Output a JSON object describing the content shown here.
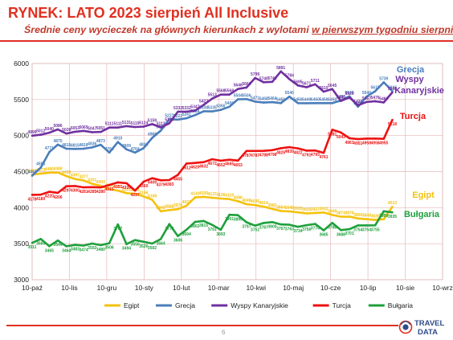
{
  "page": {
    "title": "RYNEK: LATO 2023 sierpień All Inclusive",
    "subtitle_plain": "Średnie ceny wycieczek na głównych kierunkach z wylotami ",
    "subtitle_underlined": "w pierwszym tygodniu sierpnia",
    "page_number": "6",
    "logo_text_top": "TRAVEL",
    "logo_text_bottom": "DATA"
  },
  "colors": {
    "accent": "#e03021",
    "grid": "#e6b8b8",
    "Egipt": "#f4c20d",
    "Grecja": "#4a7ebb",
    "Wyspy Kanaryjskie": "#7030a0",
    "Turcja": "#ee1111",
    "Bułgaria": "#1ea03c"
  },
  "chart_data": {
    "type": "line",
    "x_ticks": [
      "10-paź",
      "10-lis",
      "10-gru",
      "10-sty",
      "10-lut",
      "10-mar",
      "10-kwi",
      "10-maj",
      "10-cze",
      "10-lip",
      "10-sie",
      "10-wrz"
    ],
    "x_range": [
      "2022-10-10",
      "2023-09-10"
    ],
    "ylim": [
      3000,
      6000
    ],
    "yticks": [
      3000,
      3500,
      4000,
      4500,
      5000,
      5500,
      6000
    ],
    "grid": true,
    "legend_position": "bottom",
    "series": [
      {
        "name": "Egipt",
        "label_position": "right",
        "dates": [
          "2022-10-10",
          "2022-10-17",
          "2022-10-24",
          "2022-10-31",
          "2022-11-07",
          "2022-11-14",
          "2022-11-21",
          "2022-11-28",
          "2022-12-05",
          "2022-12-12",
          "2022-12-19",
          "2022-12-26",
          "2023-01-02",
          "2023-01-09",
          "2023-01-16",
          "2023-01-23",
          "2023-01-30",
          "2023-02-06",
          "2023-02-13",
          "2023-02-20",
          "2023-02-27",
          "2023-03-06",
          "2023-03-13",
          "2023-03-20",
          "2023-03-27",
          "2023-04-03",
          "2023-04-10",
          "2023-04-17",
          "2023-04-24",
          "2023-05-01",
          "2023-05-08",
          "2023-05-15",
          "2023-05-22",
          "2023-05-29",
          "2023-06-05",
          "2023-06-12",
          "2023-06-19",
          "2023-06-26",
          "2023-07-03",
          "2023-07-10",
          "2023-07-17",
          "2023-07-24",
          "2023-07-31"
        ],
        "values": [
          4457,
          4473,
          4486,
          4488,
          4438,
          4397,
          4377,
          4331,
          4303,
          4256,
          4237,
          4201,
          4193,
          4156,
          4108,
          3949,
          3966,
          3979,
          4027,
          4142,
          4150,
          4137,
          4126,
          4119,
          4088,
          4048,
          4035,
          4014,
          3982,
          3954,
          3948,
          3935,
          3920,
          3927,
          3932,
          3899,
          3874,
          3876,
          3850,
          3840,
          3830,
          3840,
          4013
        ],
        "point_labels": [
          "4457",
          "4473",
          "4486",
          "4488",
          "4438",
          "4397",
          "4377",
          "4331",
          "4303",
          "4256",
          "4237",
          "4201",
          "4193",
          "4156",
          "4108",
          "3949",
          "3966",
          "3979",
          "4027",
          "4142",
          "4150",
          "4137",
          "4126",
          "4119",
          "4088",
          "4048",
          "4035",
          "4014",
          "3982",
          "3954",
          "3948",
          "3935",
          "3920",
          "3927",
          "3932",
          "3899",
          "3874",
          "3876",
          "3850",
          "3840",
          "3830",
          "3840",
          "4013"
        ]
      },
      {
        "name": "Grecja",
        "label_position": "right",
        "dates": [
          "2022-10-10",
          "2022-10-17",
          "2022-10-24",
          "2022-10-31",
          "2022-11-07",
          "2022-11-14",
          "2022-11-21",
          "2022-11-28",
          "2022-12-05",
          "2022-12-12",
          "2022-12-19",
          "2022-12-26",
          "2023-01-02",
          "2023-01-09",
          "2023-01-16",
          "2023-01-23",
          "2023-01-30",
          "2023-02-06",
          "2023-02-13",
          "2023-02-20",
          "2023-02-27",
          "2023-03-06",
          "2023-03-13",
          "2023-03-20",
          "2023-03-27",
          "2023-04-03",
          "2023-04-10",
          "2023-04-17",
          "2023-04-24",
          "2023-05-01",
          "2023-05-08",
          "2023-05-15",
          "2023-05-22",
          "2023-05-29",
          "2023-06-05",
          "2023-06-12",
          "2023-06-19",
          "2023-06-26",
          "2023-07-03",
          "2023-07-10",
          "2023-07-17",
          "2023-07-24",
          "2023-07-31"
        ],
        "values": [
          4443,
          4555,
          4771,
          4875,
          4818,
          4815,
          4818,
          4836,
          4873,
          4764,
          4910,
          4809,
          4764,
          4826,
          4968,
          5069,
          5227,
          5222,
          5241,
          5284,
          5338,
          5335,
          5356,
          5400,
          5504,
          5506,
          5471,
          5458,
          5464,
          5450,
          5540,
          5450,
          5449,
          5450,
          5450,
          5450,
          5486,
          5545,
          5400,
          5540,
          5615,
          5739,
          5616
        ],
        "point_labels": [
          "4443",
          "4555",
          "4771",
          "4875",
          "4818",
          "4815",
          "4818",
          "4836",
          "4873",
          "4764",
          "4910",
          "4809",
          "4764",
          "4826",
          "4968",
          "5069",
          "5227",
          "5222",
          "5241",
          "5284",
          "5338",
          "5335",
          "5356",
          "5400",
          "5504",
          "5506",
          "5471",
          "5458",
          "5464",
          "5450",
          "5540",
          "5450",
          "5449",
          "5450",
          "5450",
          "5450",
          "5486",
          "5545",
          "5400",
          "5540",
          "5615",
          "5739",
          "5616"
        ]
      },
      {
        "name": "Wyspy Kanaryjskie",
        "label_position": "right",
        "dates": [
          "2022-10-10",
          "2022-10-17",
          "2022-10-24",
          "2022-10-31",
          "2022-11-07",
          "2022-11-14",
          "2022-11-21",
          "2022-11-28",
          "2022-12-05",
          "2022-12-12",
          "2022-12-19",
          "2022-12-26",
          "2023-01-02",
          "2023-01-09",
          "2023-01-16",
          "2023-01-23",
          "2023-01-30",
          "2023-02-06",
          "2023-02-13",
          "2023-02-20",
          "2023-02-27",
          "2023-03-06",
          "2023-03-13",
          "2023-03-20",
          "2023-03-27",
          "2023-04-03",
          "2023-04-10",
          "2023-04-17",
          "2023-04-24",
          "2023-05-01",
          "2023-05-08",
          "2023-05-15",
          "2023-05-22",
          "2023-05-29",
          "2023-06-05",
          "2023-06-12",
          "2023-06-19",
          "2023-06-26",
          "2023-07-03",
          "2023-07-10",
          "2023-07-17",
          "2023-07-24",
          "2023-07-31"
        ],
        "values": [
          4999,
          5012,
          5040,
          5086,
          5028,
          5053,
          5065,
          5047,
          5051,
          5111,
          5111,
          5131,
          5119,
          5124,
          5159,
          5113,
          5170,
          5332,
          5332,
          5347,
          5427,
          5513,
          5568,
          5568,
          5646,
          5666,
          5799,
          5740,
          5746,
          5891,
          5784,
          5695,
          5671,
          5711,
          5610,
          5645,
          5480,
          5529,
          5420,
          5467,
          5476,
          5460,
          5600
        ],
        "point_labels": [
          "4999",
          "5012",
          "5040",
          "5086",
          "5028",
          "5053",
          "5065",
          "5047",
          "5051",
          "5111",
          "5111",
          "5131",
          "5119",
          "5124",
          "5159",
          "5113",
          "5170",
          "5332",
          "5332",
          "5347",
          "5427",
          "5513",
          "5568",
          "5568",
          "5646",
          "5666",
          "5799",
          "5740",
          "5746",
          "5891",
          "5784",
          "5695",
          "5671",
          "5711",
          "5610",
          "5645",
          "5480",
          "5529",
          "5420",
          "5467",
          "5476",
          "5460",
          "5600"
        ]
      },
      {
        "name": "Turcja",
        "label_position": "below",
        "dates": [
          "2022-10-10",
          "2022-10-17",
          "2022-10-24",
          "2022-10-31",
          "2022-11-07",
          "2022-11-14",
          "2022-11-21",
          "2022-11-28",
          "2022-12-05",
          "2022-12-12",
          "2022-12-19",
          "2022-12-26",
          "2023-01-02",
          "2023-01-09",
          "2023-01-16",
          "2023-01-23",
          "2023-01-30",
          "2023-02-06",
          "2023-02-13",
          "2023-02-20",
          "2023-02-27",
          "2023-03-06",
          "2023-03-13",
          "2023-03-20",
          "2023-03-27",
          "2023-04-03",
          "2023-04-10",
          "2023-04-17",
          "2023-04-24",
          "2023-05-01",
          "2023-05-08",
          "2023-05-15",
          "2023-05-22",
          "2023-05-29",
          "2023-06-05",
          "2023-06-12",
          "2023-06-19",
          "2023-06-26",
          "2023-07-03",
          "2023-07-10",
          "2023-07-17",
          "2023-07-24",
          "2023-07-31"
        ],
        "values": [
          4178,
          4180,
          4220,
          4206,
          4297,
          4300,
          4281,
          4285,
          4280,
          4315,
          4351,
          4339,
          4237,
          4360,
          4409,
          4379,
          4383,
          4455,
          4612,
          4620,
          4632,
          4672,
          4652,
          4665,
          4653,
          4787,
          4787,
          4788,
          4798,
          4825,
          4839,
          4822,
          4791,
          4793,
          4761,
          5081,
          5043,
          4963,
          4951,
          4958,
          4958,
          4955,
          5218
        ],
        "point_labels": [
          "4178",
          "4180",
          "4220",
          "4206",
          "4297",
          "4300",
          "4281",
          "4285",
          "4280",
          "4315",
          "4351",
          "4339",
          "4237",
          "4360",
          "4409",
          "4379",
          "4383",
          "4455",
          "4612",
          "4620",
          "4632",
          "4672",
          "4652",
          "4665",
          "4653",
          "4787",
          "4787",
          "4788",
          "4798",
          "4825",
          "4839",
          "4822",
          "4791",
          "4793",
          "4761",
          "5081",
          "5043",
          "4963",
          "4951",
          "4958",
          "4958",
          "4955",
          "5218"
        ]
      },
      {
        "name": "Bułgaria",
        "label_position": "below",
        "dates": [
          "2022-10-10",
          "2022-10-17",
          "2022-10-24",
          "2022-10-31",
          "2022-11-07",
          "2022-11-14",
          "2022-11-21",
          "2022-11-28",
          "2022-12-05",
          "2022-12-12",
          "2022-12-19",
          "2022-12-26",
          "2023-01-02",
          "2023-01-09",
          "2023-01-16",
          "2023-01-23",
          "2023-01-30",
          "2023-02-06",
          "2023-02-13",
          "2023-02-20",
          "2023-02-27",
          "2023-03-06",
          "2023-03-13",
          "2023-03-20",
          "2023-03-27",
          "2023-04-03",
          "2023-04-10",
          "2023-04-17",
          "2023-04-24",
          "2023-05-01",
          "2023-05-08",
          "2023-05-15",
          "2023-05-22",
          "2023-05-29",
          "2023-06-05",
          "2023-06-12",
          "2023-06-19",
          "2023-06-26",
          "2023-07-03",
          "2023-07-10",
          "2023-07-17",
          "2023-07-24",
          "2023-07-31"
        ],
        "values": [
          3511,
          3565,
          3465,
          3544,
          3464,
          3483,
          3474,
          3502,
          3480,
          3506,
          3767,
          3494,
          3550,
          3526,
          3502,
          3564,
          3772,
          3606,
          3694,
          3802,
          3815,
          3761,
          3693,
          3901,
          3895,
          3797,
          3751,
          3787,
          3800,
          3767,
          3763,
          3734,
          3756,
          3774,
          3685,
          3788,
          3688,
          3701,
          3754,
          3754,
          3755,
          3950,
          3935
        ],
        "point_labels": [
          "3511",
          "3565",
          "3465",
          "3544",
          "3464",
          "3483",
          "3474",
          "3502",
          "3480",
          "3506",
          "3767",
          "3494",
          "3550",
          "3526",
          "3502",
          "3564",
          "3772",
          "3606",
          "3694",
          "3802",
          "3815",
          "3761",
          "3693",
          "3901",
          "3895",
          "3797",
          "3751",
          "3787",
          "3800",
          "3767",
          "3763",
          "3734",
          "3756",
          "3774",
          "3685",
          "3788",
          "3688",
          "3701",
          "3754",
          "3754",
          "3755",
          "3950",
          "3935"
        ]
      }
    ],
    "series_name_labels": [
      {
        "series": "Grecja",
        "text": "Grecja"
      },
      {
        "series": "Wyspy Kanaryjskie",
        "text": "Wyspy"
      },
      {
        "series": "Wyspy Kanaryjskie",
        "text": "Kanaryjskie"
      },
      {
        "series": "Turcja",
        "text": "Turcja"
      },
      {
        "series": "Egipt",
        "text": "Egipt"
      },
      {
        "series": "Bułgaria",
        "text": "Bułgaria"
      }
    ],
    "legend": [
      "Egipt",
      "Grecja",
      "Wyspy Kanaryjskie",
      "Turcja",
      "Bułgaria"
    ]
  }
}
